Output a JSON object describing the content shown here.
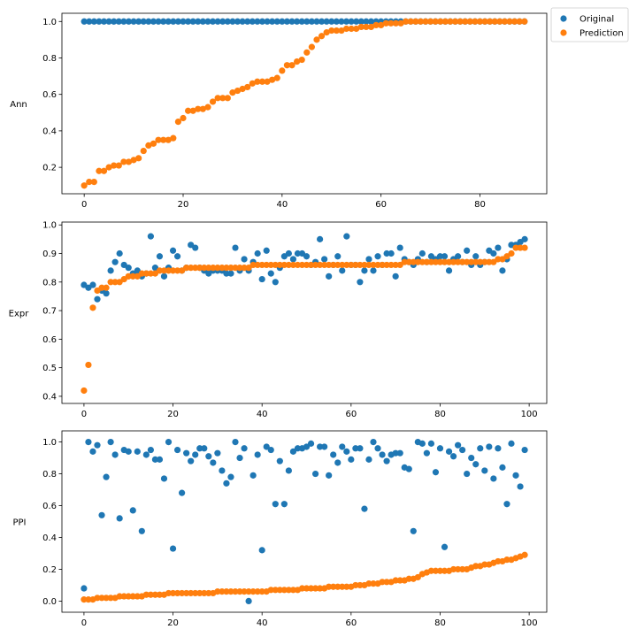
{
  "colors": {
    "original": "#1f77b4",
    "prediction": "#ff7f0e"
  },
  "legend": {
    "placement": "outside-top-right",
    "entries": [
      "Original",
      "Prediction"
    ]
  },
  "chart_data": [
    {
      "type": "scatter",
      "ylabel": "Ann",
      "xlim": [
        -4.5,
        93.5
      ],
      "ylim": [
        0.055,
        1.045
      ],
      "xticks": [
        0,
        20,
        40,
        60,
        80
      ],
      "yticks": [
        0.2,
        0.4,
        0.6,
        0.8,
        1.0
      ],
      "ytick_labels": [
        "0.2",
        "0.4",
        "0.6",
        "0.8",
        "1.0"
      ],
      "series": [
        {
          "name": "Original",
          "values": [
            1,
            1,
            1,
            1,
            1,
            1,
            1,
            1,
            1,
            1,
            1,
            1,
            1,
            1,
            1,
            1,
            1,
            1,
            1,
            1,
            1,
            1,
            1,
            1,
            1,
            1,
            1,
            1,
            1,
            1,
            1,
            1,
            1,
            1,
            1,
            1,
            1,
            1,
            1,
            1,
            1,
            1,
            1,
            1,
            1,
            1,
            1,
            1,
            1,
            1,
            1,
            1,
            1,
            1,
            1,
            1,
            1,
            1,
            1,
            1,
            1,
            1,
            1,
            1,
            1,
            1,
            1,
            1,
            1,
            1,
            1,
            1,
            1,
            1,
            1,
            1,
            1,
            1,
            1,
            1,
            1,
            1,
            1,
            1,
            1,
            1,
            1,
            1,
            1,
            1
          ]
        },
        {
          "name": "Prediction",
          "values": [
            0.1,
            0.12,
            0.12,
            0.18,
            0.18,
            0.2,
            0.21,
            0.21,
            0.23,
            0.23,
            0.24,
            0.25,
            0.29,
            0.32,
            0.33,
            0.35,
            0.35,
            0.35,
            0.36,
            0.45,
            0.47,
            0.51,
            0.51,
            0.52,
            0.52,
            0.53,
            0.56,
            0.58,
            0.58,
            0.58,
            0.61,
            0.62,
            0.63,
            0.64,
            0.66,
            0.67,
            0.67,
            0.67,
            0.68,
            0.69,
            0.73,
            0.76,
            0.76,
            0.78,
            0.79,
            0.83,
            0.86,
            0.9,
            0.92,
            0.94,
            0.95,
            0.95,
            0.95,
            0.96,
            0.96,
            0.96,
            0.97,
            0.97,
            0.97,
            0.98,
            0.98,
            0.99,
            0.99,
            0.99,
            0.99,
            1,
            1,
            1,
            1,
            1,
            1,
            1,
            1,
            1,
            1,
            1,
            1,
            1,
            1,
            1,
            1,
            1,
            1,
            1,
            1,
            1,
            1,
            1,
            1,
            1
          ]
        }
      ]
    },
    {
      "type": "scatter",
      "ylabel": "Expr",
      "xlim": [
        -4.95,
        103.95
      ],
      "ylim": [
        0.375,
        1.01
      ],
      "xticks": [
        0,
        20,
        40,
        60,
        80,
        100
      ],
      "yticks": [
        0.4,
        0.5,
        0.6,
        0.7,
        0.8,
        0.9,
        1.0
      ],
      "ytick_labels": [
        "0.4",
        "0.5",
        "0.6",
        "0.7",
        "0.8",
        "0.9",
        "1.0"
      ],
      "series": [
        {
          "name": "Original",
          "values": [
            0.79,
            0.78,
            0.79,
            0.74,
            0.77,
            0.76,
            0.84,
            0.87,
            0.9,
            0.86,
            0.85,
            0.83,
            0.84,
            0.82,
            0.83,
            0.96,
            0.85,
            0.89,
            0.82,
            0.85,
            0.91,
            0.89,
            0.84,
            0.85,
            0.93,
            0.92,
            0.85,
            0.84,
            0.83,
            0.84,
            0.84,
            0.84,
            0.83,
            0.83,
            0.92,
            0.84,
            0.88,
            0.84,
            0.87,
            0.9,
            0.81,
            0.91,
            0.83,
            0.8,
            0.85,
            0.89,
            0.9,
            0.88,
            0.9,
            0.9,
            0.89,
            0.86,
            0.87,
            0.95,
            0.88,
            0.82,
            0.86,
            0.89,
            0.84,
            0.96,
            0.86,
            0.86,
            0.8,
            0.84,
            0.88,
            0.84,
            0.89,
            0.86,
            0.9,
            0.9,
            0.82,
            0.92,
            0.88,
            0.87,
            0.86,
            0.88,
            0.9,
            0.87,
            0.89,
            0.88,
            0.89,
            0.89,
            0.84,
            0.88,
            0.89,
            0.87,
            0.91,
            0.86,
            0.89,
            0.86,
            0.87,
            0.91,
            0.9,
            0.92,
            0.84,
            0.88,
            0.93,
            0.93,
            0.94,
            0.95
          ]
        },
        {
          "name": "Prediction",
          "values": [
            0.42,
            0.51,
            0.71,
            0.77,
            0.78,
            0.78,
            0.8,
            0.8,
            0.8,
            0.81,
            0.82,
            0.82,
            0.82,
            0.83,
            0.83,
            0.83,
            0.83,
            0.84,
            0.84,
            0.84,
            0.84,
            0.84,
            0.84,
            0.85,
            0.85,
            0.85,
            0.85,
            0.85,
            0.85,
            0.85,
            0.85,
            0.85,
            0.85,
            0.85,
            0.85,
            0.85,
            0.85,
            0.85,
            0.86,
            0.86,
            0.86,
            0.86,
            0.86,
            0.86,
            0.86,
            0.86,
            0.86,
            0.86,
            0.86,
            0.86,
            0.86,
            0.86,
            0.86,
            0.86,
            0.86,
            0.86,
            0.86,
            0.86,
            0.86,
            0.86,
            0.86,
            0.86,
            0.86,
            0.86,
            0.86,
            0.86,
            0.86,
            0.86,
            0.86,
            0.86,
            0.86,
            0.86,
            0.87,
            0.87,
            0.87,
            0.87,
            0.87,
            0.87,
            0.87,
            0.87,
            0.87,
            0.87,
            0.87,
            0.87,
            0.87,
            0.87,
            0.87,
            0.87,
            0.87,
            0.87,
            0.87,
            0.87,
            0.87,
            0.88,
            0.88,
            0.89,
            0.9,
            0.92,
            0.92,
            0.92
          ]
        }
      ]
    },
    {
      "type": "scatter",
      "ylabel": "PPI",
      "xlim": [
        -4.95,
        103.95
      ],
      "ylim": [
        -0.07,
        1.07
      ],
      "xticks": [
        0,
        20,
        40,
        60,
        80,
        100
      ],
      "yticks": [
        0.0,
        0.2,
        0.4,
        0.6,
        0.8,
        1.0
      ],
      "ytick_labels": [
        "0.0",
        "0.2",
        "0.4",
        "0.6",
        "0.8",
        "1.0"
      ],
      "series": [
        {
          "name": "Original",
          "values": [
            0.08,
            1.0,
            0.94,
            0.98,
            0.54,
            0.78,
            1.0,
            0.92,
            0.52,
            0.95,
            0.94,
            0.57,
            0.94,
            0.44,
            0.92,
            0.95,
            0.89,
            0.89,
            0.77,
            1.0,
            0.33,
            0.95,
            0.68,
            0.93,
            0.88,
            0.92,
            0.96,
            0.96,
            0.91,
            0.87,
            0.93,
            0.82,
            0.74,
            0.78,
            1.0,
            0.9,
            0.96,
            0.0,
            0.79,
            0.92,
            0.32,
            0.97,
            0.95,
            0.61,
            0.88,
            0.61,
            0.82,
            0.94,
            0.96,
            0.96,
            0.97,
            0.99,
            0.8,
            0.97,
            0.97,
            0.79,
            0.92,
            0.87,
            0.97,
            0.94,
            0.89,
            0.96,
            0.96,
            0.58,
            0.89,
            1.0,
            0.96,
            0.92,
            0.88,
            0.92,
            0.93,
            0.93,
            0.84,
            0.83,
            0.44,
            1.0,
            0.99,
            0.93,
            0.99,
            0.81,
            0.96,
            0.34,
            0.94,
            0.91,
            0.98,
            0.95,
            0.8,
            0.9,
            0.86,
            0.96,
            0.82,
            0.97,
            0.77,
            0.96,
            0.84,
            0.61,
            0.99,
            0.79,
            0.72,
            0.95
          ]
        },
        {
          "name": "Prediction",
          "values": [
            0.01,
            0.01,
            0.01,
            0.02,
            0.02,
            0.02,
            0.02,
            0.02,
            0.03,
            0.03,
            0.03,
            0.03,
            0.03,
            0.03,
            0.04,
            0.04,
            0.04,
            0.04,
            0.04,
            0.05,
            0.05,
            0.05,
            0.05,
            0.05,
            0.05,
            0.05,
            0.05,
            0.05,
            0.05,
            0.05,
            0.06,
            0.06,
            0.06,
            0.06,
            0.06,
            0.06,
            0.06,
            0.06,
            0.06,
            0.06,
            0.06,
            0.06,
            0.07,
            0.07,
            0.07,
            0.07,
            0.07,
            0.07,
            0.07,
            0.08,
            0.08,
            0.08,
            0.08,
            0.08,
            0.08,
            0.09,
            0.09,
            0.09,
            0.09,
            0.09,
            0.09,
            0.1,
            0.1,
            0.1,
            0.11,
            0.11,
            0.11,
            0.12,
            0.12,
            0.12,
            0.13,
            0.13,
            0.13,
            0.14,
            0.14,
            0.15,
            0.17,
            0.18,
            0.19,
            0.19,
            0.19,
            0.19,
            0.19,
            0.2,
            0.2,
            0.2,
            0.2,
            0.21,
            0.22,
            0.22,
            0.23,
            0.23,
            0.24,
            0.25,
            0.25,
            0.26,
            0.26,
            0.27,
            0.28,
            0.29
          ]
        }
      ]
    }
  ]
}
